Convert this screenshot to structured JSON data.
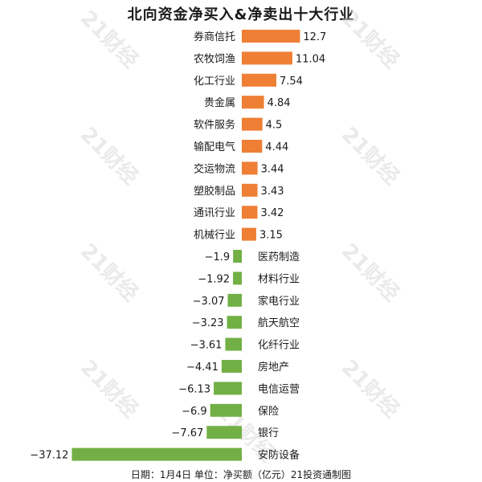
{
  "chart_data": {
    "type": "bar",
    "title": "北向资金净买入&净卖出十大行业",
    "footer": "日期：1月4日 单位：净买额（亿元）21投资通制图",
    "watermark": "21财经",
    "categories": [
      "券商信托",
      "农牧饲渔",
      "化工行业",
      "贵金属",
      "软件服务",
      "输配电气",
      "交运物流",
      "塑胶制品",
      "通讯行业",
      "机械行业",
      "医药制造",
      "材料行业",
      "家电行业",
      "航天航空",
      "化纤行业",
      "房地产",
      "电信运营",
      "保险",
      "银行",
      "安防设备"
    ],
    "values": [
      12.7,
      11.04,
      7.54,
      4.84,
      4.5,
      4.44,
      3.44,
      3.43,
      3.42,
      3.15,
      -1.9,
      -1.92,
      -3.07,
      -3.23,
      -3.61,
      -4.41,
      -6.13,
      -6.9,
      -7.67,
      -37.12
    ],
    "value_labels": [
      "12.7",
      "11.04",
      "7.54",
      "4.84",
      "4.5",
      "4.44",
      "3.44",
      "3.43",
      "3.42",
      "3.15",
      "−1.9",
      "−1.92",
      "−3.07",
      "−3.23",
      "−3.61",
      "−4.41",
      "−6.13",
      "−6.9",
      "−7.67",
      "−37.12"
    ],
    "colors": {
      "positive": "#ee7f35",
      "negative": "#72b046"
    }
  }
}
